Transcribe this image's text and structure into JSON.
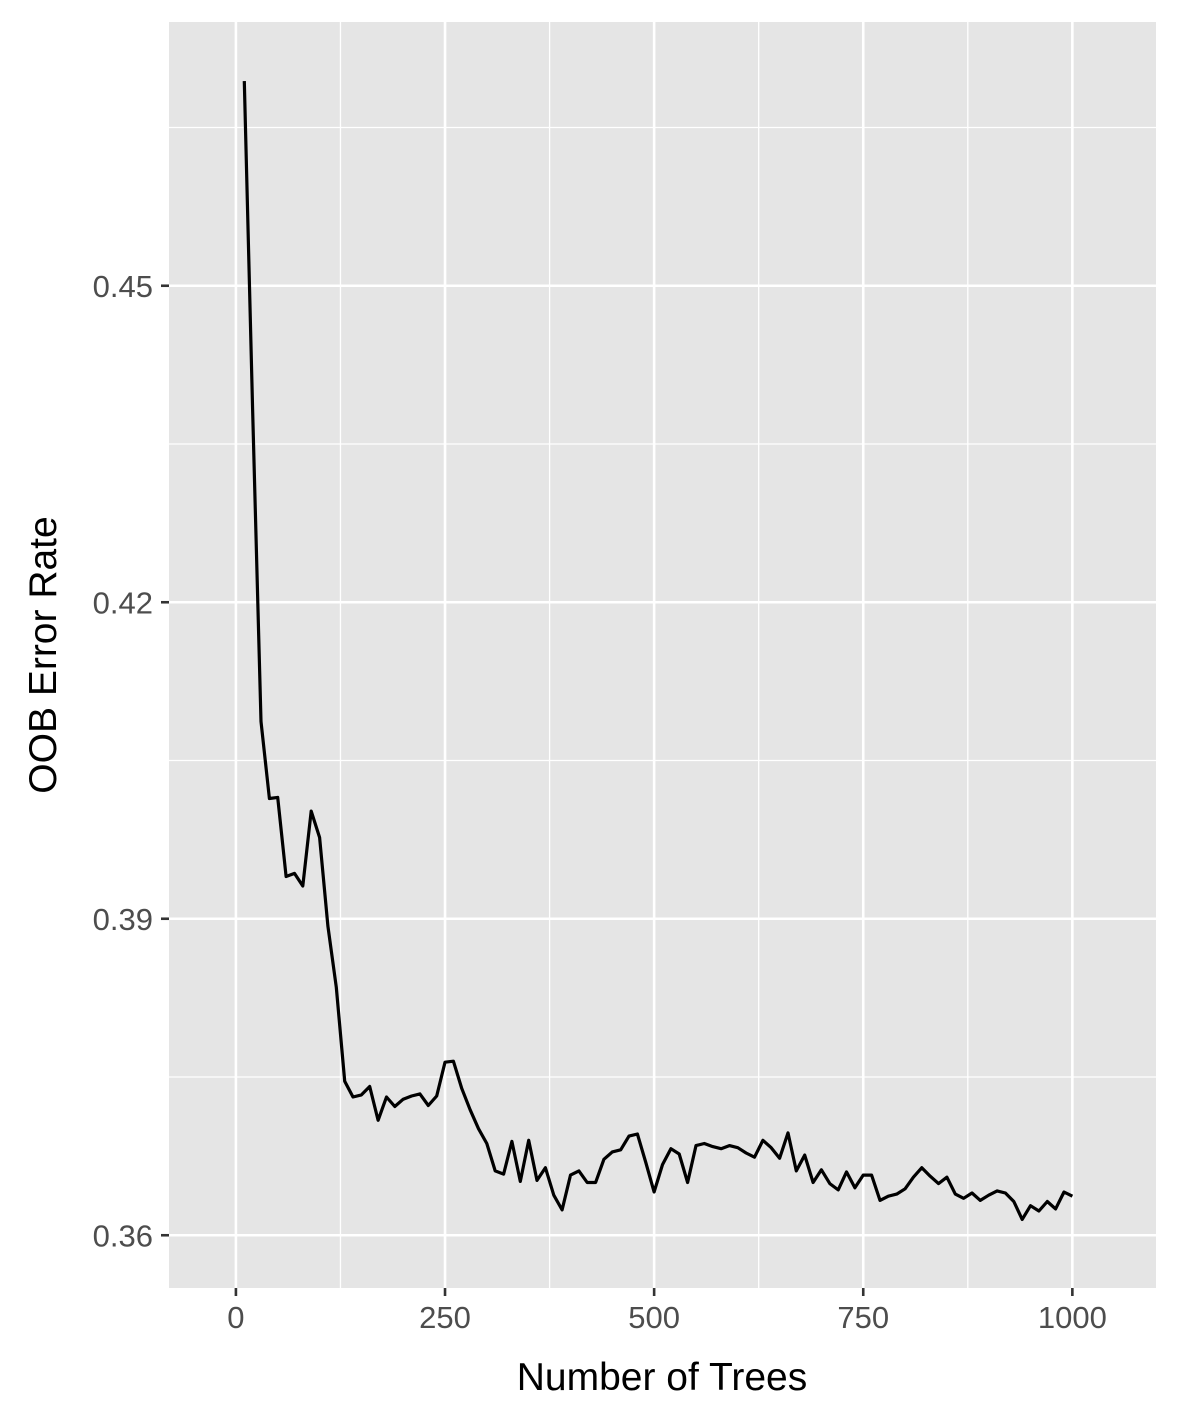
{
  "chart_data": {
    "type": "line",
    "xlabel": "Number of Trees",
    "ylabel": "OOB Error Rate",
    "xlim": [
      -80,
      1100
    ],
    "ylim": [
      0.355,
      0.475
    ],
    "x_ticks": [
      0,
      250,
      500,
      750,
      1000
    ],
    "x_tick_labels": [
      "0",
      "250",
      "500",
      "750",
      "1000"
    ],
    "y_ticks": [
      0.36,
      0.39,
      0.42,
      0.45
    ],
    "y_tick_labels": [
      "0.36",
      "0.39",
      "0.42",
      "0.45"
    ],
    "grid": true,
    "legend": "none",
    "series": [
      {
        "color": "#000000",
        "x": [
          10,
          20,
          30,
          40,
          50,
          60,
          70,
          80,
          90,
          100,
          110,
          120,
          130,
          140,
          150,
          160,
          170,
          180,
          190,
          200,
          210,
          220,
          230,
          240,
          250,
          260,
          270,
          280,
          290,
          300,
          310,
          320,
          330,
          340,
          350,
          360,
          370,
          380,
          390,
          400,
          410,
          420,
          430,
          440,
          450,
          460,
          470,
          480,
          490,
          500,
          510,
          520,
          530,
          540,
          550,
          560,
          570,
          580,
          590,
          600,
          610,
          620,
          630,
          640,
          650,
          660,
          670,
          680,
          690,
          700,
          710,
          720,
          730,
          740,
          750,
          760,
          770,
          780,
          790,
          800,
          810,
          820,
          830,
          840,
          850,
          860,
          870,
          880,
          890,
          900,
          910,
          920,
          930,
          940,
          950,
          960,
          970,
          980,
          990,
          1000
        ],
        "y": [
          0.4694,
          0.4383,
          0.4087,
          0.4014,
          0.4015,
          0.394,
          0.3943,
          0.3931,
          0.4002,
          0.3977,
          0.3893,
          0.3835,
          0.3746,
          0.3731,
          0.3733,
          0.3741,
          0.3709,
          0.3731,
          0.3722,
          0.3729,
          0.3732,
          0.3734,
          0.3723,
          0.3732,
          0.3764,
          0.3765,
          0.3739,
          0.3719,
          0.3701,
          0.3687,
          0.3661,
          0.3658,
          0.3689,
          0.3651,
          0.369,
          0.3652,
          0.3664,
          0.3638,
          0.3624,
          0.3657,
          0.3661,
          0.365,
          0.365,
          0.3672,
          0.3679,
          0.3681,
          0.3694,
          0.3696,
          0.3669,
          0.3641,
          0.3667,
          0.3682,
          0.3677,
          0.365,
          0.3685,
          0.3687,
          0.3684,
          0.3682,
          0.3685,
          0.3683,
          0.3678,
          0.3674,
          0.369,
          0.3683,
          0.3673,
          0.3697,
          0.3661,
          0.3676,
          0.365,
          0.3662,
          0.3649,
          0.3643,
          0.366,
          0.3645,
          0.3657,
          0.3657,
          0.3633,
          0.3637,
          0.3639,
          0.3644,
          0.3655,
          0.3664,
          0.3656,
          0.3649,
          0.3655,
          0.3639,
          0.3635,
          0.364,
          0.3633,
          0.3638,
          0.3642,
          0.364,
          0.3632,
          0.3615,
          0.3628,
          0.3623,
          0.3632,
          0.3625,
          0.3641,
          0.3637
        ]
      }
    ]
  }
}
